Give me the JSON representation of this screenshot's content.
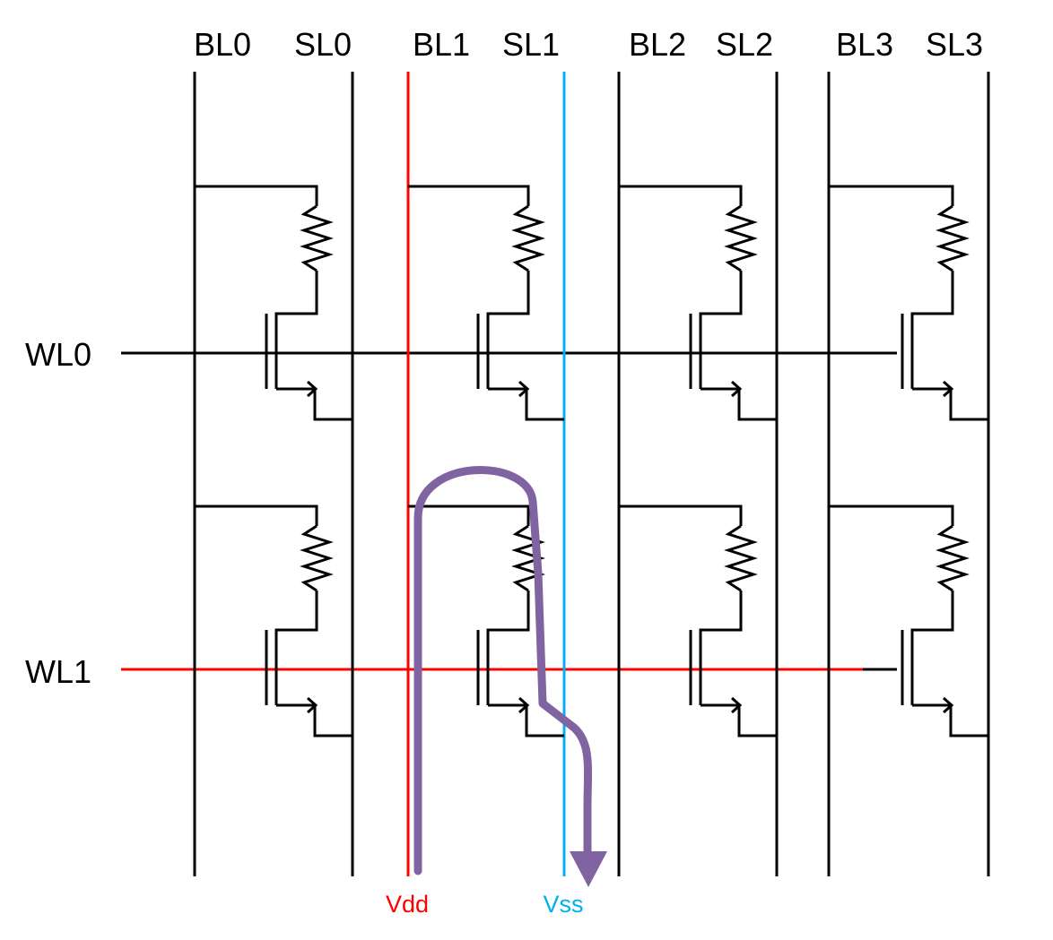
{
  "columns": [
    {
      "bl": "BL0",
      "sl": "SL0"
    },
    {
      "bl": "BL1",
      "sl": "SL1"
    },
    {
      "bl": "BL2",
      "sl": "SL2"
    },
    {
      "bl": "BL3",
      "sl": "SL3"
    }
  ],
  "rows": [
    {
      "label": "WL0"
    },
    {
      "label": "WL1"
    }
  ],
  "supply": {
    "vdd": "Vdd",
    "vss": "Vss"
  },
  "colors": {
    "wire": "#000000",
    "active_wordline": "#ff0000",
    "vdd_line": "#ff0000",
    "vss_line": "#00b0f0",
    "current_path": "#8064a2"
  }
}
